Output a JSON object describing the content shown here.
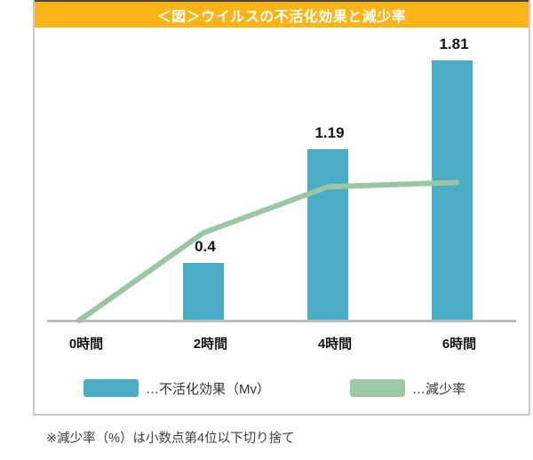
{
  "title": "＜図＞ウイルスの不活化効果と減少率",
  "footnote": "※減少率（%）は小数点第4位以下切り捨て",
  "legend": {
    "bar_label": "…不活化効果（Mv）",
    "line_label": "…減少率"
  },
  "colors": {
    "title_bg": "#FBB415",
    "title_text": "#FFFFFF",
    "bar": "#4AACC5",
    "line": "#9AC7A2",
    "axis_line": "#BDBDBD",
    "frame_border": "#C9C9C9",
    "label_text": "#141414",
    "footnote_text": "#3D3D3D"
  },
  "chart_data": {
    "type": "combo",
    "categories": [
      "0時間",
      "2時間",
      "4時間",
      "6時間"
    ],
    "series": [
      {
        "name": "不活化効果（Mv）",
        "type": "bar",
        "values": [
          0,
          0.4,
          1.19,
          1.81
        ],
        "labels": [
          "",
          "0.4",
          "1.19",
          "1.81"
        ],
        "color": "#4AACC5"
      },
      {
        "name": "減少率",
        "type": "line",
        "values_est": [
          0,
          0.61,
          0.93,
          0.96
        ],
        "color": "#9AC7A2"
      }
    ],
    "title": "＜図＞ウイルスの不活化効果と減少率",
    "xlabel": "",
    "ylabel": "",
    "ylim": [
      0,
      2.0
    ],
    "grid": false,
    "legend_position": "bottom",
    "y_axis_visible": false
  }
}
